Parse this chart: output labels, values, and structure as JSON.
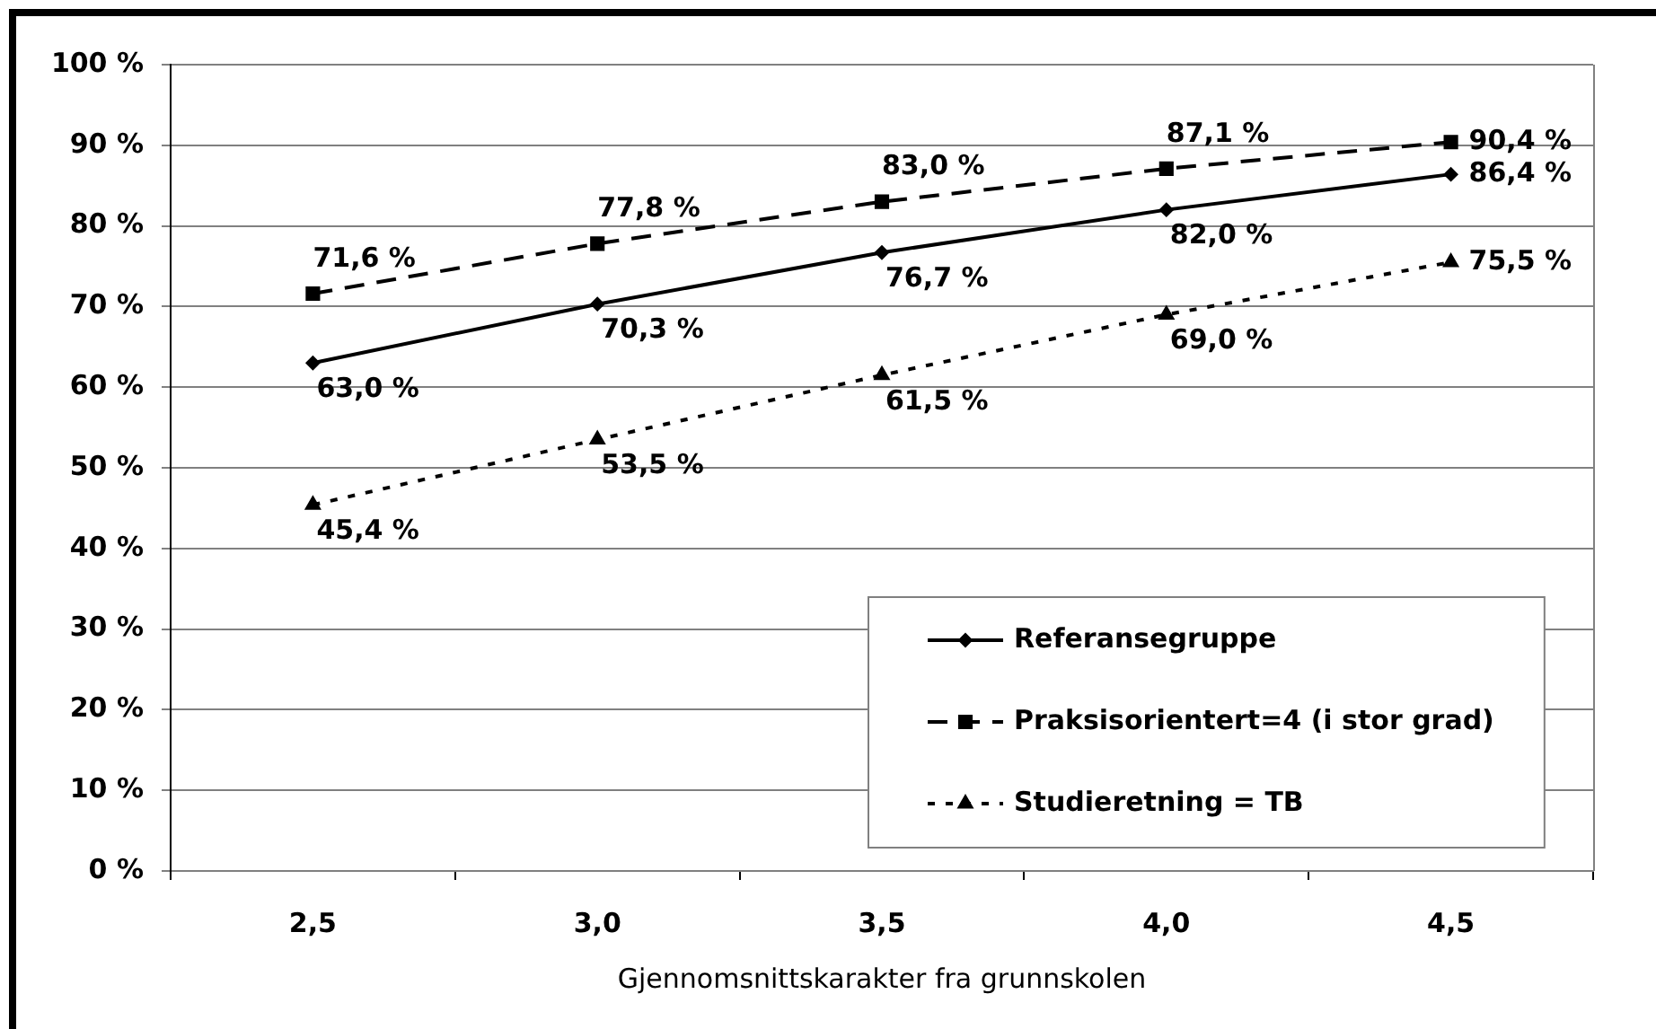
{
  "chart_data": {
    "type": "line",
    "xlabel": "Gjennomsnittskarakter fra grunnskolen",
    "categories": [
      "2,5",
      "3,0",
      "3,5",
      "4,0",
      "4,5"
    ],
    "series": [
      {
        "name": "Referansegruppe",
        "color": "#000000",
        "marker": "diamond",
        "line_style": "solid",
        "values": [
          63.0,
          70.3,
          76.7,
          82.0,
          86.4
        ],
        "value_labels": [
          "63,0 %",
          "70,3 %",
          "76,7 %",
          "82,0 %",
          "86,4 %"
        ]
      },
      {
        "name": "Praksisorientert=4 (i stor grad)",
        "color": "#000000",
        "marker": "square",
        "line_style": "dashed",
        "values": [
          71.6,
          77.8,
          83.0,
          87.1,
          90.4
        ],
        "value_labels": [
          "71,6 %",
          "77,8 %",
          "83,0 %",
          "87,1 %",
          "90,4 %"
        ]
      },
      {
        "name": "Studieretning = TB",
        "color": "#000000",
        "marker": "triangle",
        "line_style": "dotted",
        "values": [
          45.4,
          53.5,
          61.5,
          69.0,
          75.5
        ],
        "value_labels": [
          "45,4 %",
          "53,5 %",
          "61,5 %",
          "69,0 %",
          "75,5 %"
        ]
      }
    ],
    "ylim": [
      0,
      100
    ],
    "yticks": [
      {
        "value": 0,
        "label": "0 %"
      },
      {
        "value": 10,
        "label": "10 %"
      },
      {
        "value": 20,
        "label": "20 %"
      },
      {
        "value": 30,
        "label": "30 %"
      },
      {
        "value": 40,
        "label": "40 %"
      },
      {
        "value": 50,
        "label": "50 %"
      },
      {
        "value": 60,
        "label": "60 %"
      },
      {
        "value": 70,
        "label": "70 %"
      },
      {
        "value": 80,
        "label": "80 %"
      },
      {
        "value": 90,
        "label": "90 %"
      },
      {
        "value": 100,
        "label": "100 %"
      }
    ],
    "grid": "y",
    "legend": "bottom right"
  }
}
